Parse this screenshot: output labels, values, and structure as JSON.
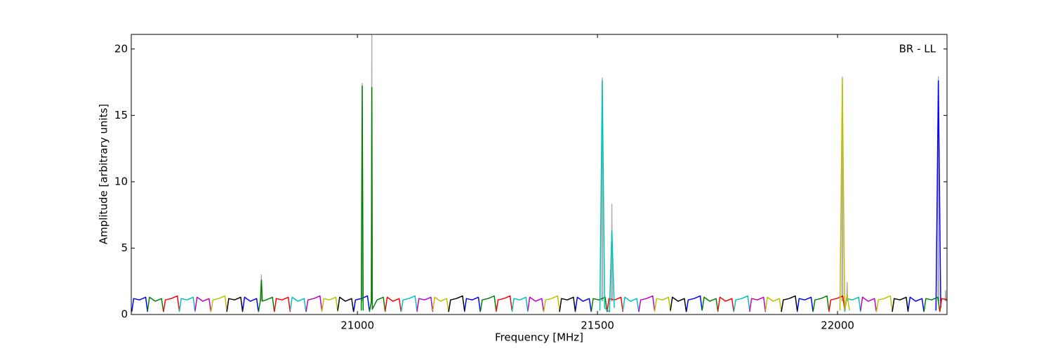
{
  "chart_data": {
    "type": "line",
    "annotation": "BR - LL",
    "xlabel": "Frequency [MHz]",
    "ylabel": "Amplitude [arbitrary units]",
    "xlim": [
      20529,
      22228
    ],
    "ylim": [
      0,
      21.1
    ],
    "xticks": [
      21000,
      21500,
      22000
    ],
    "yticks": [
      0,
      5,
      10,
      15,
      20
    ],
    "series": [
      {
        "color": "#b0b0b0",
        "x": [
          20799,
          20800,
          20801,
          null,
          21009,
          21010,
          21011,
          null,
          21029,
          21030,
          21031,
          null,
          21509,
          21510,
          21511,
          null,
          21529,
          21530,
          21531,
          null,
          22009,
          22010,
          22011,
          null,
          22019,
          22020,
          22021,
          null,
          22209,
          22210,
          22211,
          null,
          22224,
          22225,
          22226
        ],
        "values": [
          1.0,
          3.0,
          1.0,
          null,
          1.0,
          17.4,
          1.0,
          null,
          1.0,
          21.1,
          1.0,
          null,
          1.0,
          17.8,
          1.0,
          null,
          1.0,
          8.3,
          1.0,
          null,
          1.0,
          17.9,
          1.0,
          null,
          1.0,
          2.4,
          1.0,
          null,
          1.0,
          17.9,
          1.0,
          null,
          1.0,
          1.8,
          1.0
        ]
      },
      {
        "color": "#0000ff",
        "x": [
          20530,
          20534,
          20546,
          20559,
          20563,
          null,
          20761,
          20765,
          20777,
          20790,
          20794,
          null,
          20992,
          20996,
          21008,
          21021,
          21025,
          null,
          21223,
          21227,
          21239,
          21252,
          21256,
          null,
          21454,
          21458,
          21470,
          21483,
          21487,
          null,
          21685,
          21689,
          21701,
          21714,
          21718,
          null,
          21916,
          21920,
          21932,
          21945,
          21949,
          null,
          22147,
          22151,
          22163,
          22176,
          22180,
          null,
          22205,
          22210,
          22215
        ],
        "values": [
          0.2,
          1.2,
          1.1,
          1.3,
          0.2,
          null,
          0.3,
          1.3,
          1.0,
          1.2,
          0.2,
          null,
          0.2,
          1.1,
          1.2,
          1.4,
          0.3,
          null,
          0.2,
          1.2,
          1.1,
          1.3,
          0.2,
          null,
          0.3,
          1.3,
          1.0,
          1.2,
          0.2,
          null,
          0.2,
          1.1,
          1.2,
          1.4,
          0.3,
          null,
          0.2,
          1.2,
          1.1,
          1.3,
          0.2,
          null,
          0.3,
          1.3,
          1.0,
          1.2,
          0.2,
          null,
          0.3,
          17.6,
          0.5
        ]
      },
      {
        "color": "#008000",
        "x": [
          20563,
          20567,
          20579,
          20592,
          20596,
          null,
          20794,
          20798,
          20800,
          20802,
          20810,
          20823,
          20827,
          null,
          21008,
          21010,
          21012,
          null,
          21025,
          21029,
          21030,
          21031,
          21041,
          21054,
          21058,
          null,
          21256,
          21260,
          21272,
          21285,
          21289,
          null,
          21487,
          21491,
          21503,
          21516,
          21520,
          null,
          21718,
          21722,
          21734,
          21747,
          21751,
          null,
          21949,
          21953,
          21965,
          21978,
          21982,
          null,
          22180,
          22184,
          22196,
          22209,
          22213
        ],
        "values": [
          0.3,
          1.3,
          1.0,
          1.2,
          0.2,
          null,
          0.2,
          1.1,
          2.6,
          1.0,
          1.1,
          1.3,
          0.2,
          null,
          0.3,
          17.2,
          0.3,
          null,
          0.2,
          1.0,
          17.1,
          0.4,
          1.1,
          1.3,
          0.2,
          null,
          0.2,
          1.1,
          1.2,
          1.4,
          0.3,
          null,
          0.2,
          1.2,
          1.1,
          1.3,
          0.2,
          null,
          0.3,
          1.3,
          1.0,
          1.2,
          0.2,
          null,
          0.2,
          1.1,
          1.2,
          1.4,
          0.3,
          null,
          0.2,
          1.2,
          1.1,
          1.3,
          0.2
        ]
      },
      {
        "color": "#ff0000",
        "x": [
          20596,
          20600,
          20612,
          20625,
          20629,
          null,
          20827,
          20831,
          20843,
          20856,
          20860,
          null,
          21058,
          21062,
          21074,
          21087,
          21091,
          null,
          21289,
          21293,
          21305,
          21318,
          21322,
          null,
          21520,
          21524,
          21536,
          21549,
          21553,
          null,
          21751,
          21755,
          21767,
          21780,
          21784,
          null,
          21982,
          21986,
          21998,
          22011,
          22015,
          null,
          22213,
          22217,
          22229,
          22242,
          22246
        ],
        "values": [
          0.2,
          1.1,
          1.2,
          1.4,
          0.3,
          null,
          0.2,
          1.2,
          1.1,
          1.3,
          0.2,
          null,
          0.3,
          1.3,
          1.0,
          1.2,
          0.2,
          null,
          0.2,
          1.1,
          1.2,
          1.4,
          0.3,
          null,
          0.2,
          1.2,
          1.1,
          1.3,
          0.2,
          null,
          0.3,
          1.3,
          1.0,
          1.2,
          0.2,
          null,
          0.2,
          1.1,
          1.2,
          1.4,
          0.3,
          null,
          0.2,
          1.2,
          1.1,
          1.3,
          0.2
        ]
      },
      {
        "color": "#00bfbf",
        "x": [
          20629,
          20633,
          20645,
          20658,
          20662,
          null,
          20860,
          20864,
          20876,
          20889,
          20893,
          null,
          21091,
          21095,
          21107,
          21120,
          21124,
          null,
          21322,
          21326,
          21338,
          21351,
          21355,
          null,
          21505,
          21510,
          21515,
          21525,
          21530,
          21535,
          null,
          21553,
          21557,
          21569,
          21582,
          21586,
          null,
          21784,
          21788,
          21800,
          21813,
          21817,
          null,
          22015,
          22019,
          22031,
          22044,
          22048
        ],
        "values": [
          0.2,
          1.2,
          1.1,
          1.3,
          0.2,
          null,
          0.3,
          1.3,
          1.0,
          1.2,
          0.2,
          null,
          0.2,
          1.1,
          1.2,
          1.4,
          0.3,
          null,
          0.2,
          1.2,
          1.1,
          1.3,
          0.2,
          null,
          0.3,
          17.6,
          0.5,
          0.2,
          6.3,
          0.5,
          null,
          0.3,
          1.3,
          1.0,
          1.2,
          0.2,
          null,
          0.2,
          1.1,
          1.2,
          1.4,
          0.3,
          null,
          0.2,
          1.2,
          1.1,
          1.3,
          0.2
        ]
      },
      {
        "color": "#bf00bf",
        "x": [
          20662,
          20666,
          20678,
          20691,
          20695,
          null,
          20893,
          20897,
          20909,
          20922,
          20926,
          null,
          21124,
          21128,
          21140,
          21153,
          21157,
          null,
          21355,
          21359,
          21371,
          21384,
          21388,
          null,
          21586,
          21590,
          21602,
          21615,
          21619,
          null,
          21817,
          21821,
          21833,
          21846,
          21850,
          null,
          22048,
          22052,
          22064,
          22077,
          22081
        ],
        "values": [
          0.3,
          1.3,
          1.0,
          1.2,
          0.2,
          null,
          0.2,
          1.1,
          1.2,
          1.4,
          0.3,
          null,
          0.2,
          1.2,
          1.1,
          1.3,
          0.2,
          null,
          0.3,
          1.3,
          1.0,
          1.2,
          0.2,
          null,
          0.2,
          1.1,
          1.2,
          1.4,
          0.3,
          null,
          0.2,
          1.2,
          1.1,
          1.3,
          0.2,
          null,
          0.3,
          1.3,
          1.0,
          1.2,
          0.2
        ]
      },
      {
        "color": "#bfbf00",
        "x": [
          20695,
          20699,
          20711,
          20724,
          20728,
          null,
          20926,
          20930,
          20942,
          20955,
          20959,
          null,
          21157,
          21161,
          21173,
          21186,
          21190,
          null,
          21388,
          21392,
          21404,
          21417,
          21421,
          null,
          21619,
          21623,
          21635,
          21648,
          21652,
          null,
          21850,
          21854,
          21866,
          21879,
          21883,
          null,
          22005,
          22010,
          22015,
          22020,
          22025,
          null,
          22081,
          22085,
          22097,
          22110,
          22114
        ],
        "values": [
          0.2,
          1.1,
          1.2,
          1.4,
          0.3,
          null,
          0.2,
          1.2,
          1.1,
          1.3,
          0.2,
          null,
          0.3,
          1.3,
          1.0,
          1.2,
          0.2,
          null,
          0.2,
          1.1,
          1.2,
          1.4,
          0.3,
          null,
          0.2,
          1.2,
          1.1,
          1.3,
          0.2,
          null,
          0.3,
          1.3,
          1.0,
          1.2,
          0.2,
          null,
          0.3,
          17.7,
          0.4,
          1.5,
          0.3,
          null,
          0.2,
          1.1,
          1.2,
          1.4,
          0.3
        ]
      },
      {
        "color": "#000000",
        "x": [
          20728,
          20732,
          20744,
          20757,
          20761,
          null,
          20959,
          20963,
          20975,
          20988,
          20992,
          null,
          21190,
          21194,
          21206,
          21219,
          21223,
          null,
          21421,
          21425,
          21437,
          21450,
          21454,
          null,
          21652,
          21656,
          21668,
          21681,
          21685,
          null,
          21883,
          21887,
          21899,
          21912,
          21916,
          null,
          22114,
          22118,
          22130,
          22143,
          22147
        ],
        "values": [
          0.2,
          1.2,
          1.1,
          1.3,
          0.2,
          null,
          0.3,
          1.3,
          1.0,
          1.2,
          0.2,
          null,
          0.2,
          1.1,
          1.2,
          1.4,
          0.3,
          null,
          0.2,
          1.2,
          1.1,
          1.3,
          0.2,
          null,
          0.3,
          1.3,
          1.0,
          1.2,
          0.2,
          null,
          0.2,
          1.1,
          1.2,
          1.4,
          0.3,
          null,
          0.2,
          1.2,
          1.1,
          1.3,
          0.2
        ]
      }
    ]
  }
}
